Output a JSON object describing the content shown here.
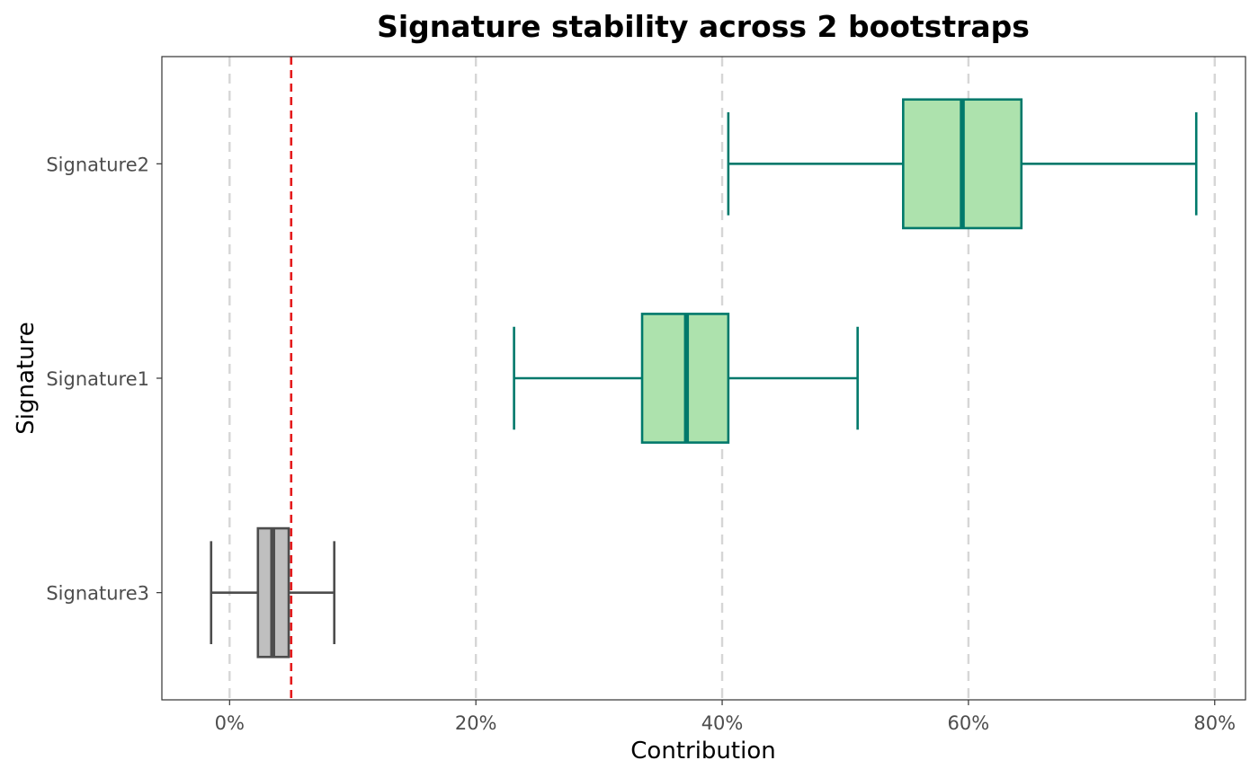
{
  "chart_data": {
    "type": "boxplot",
    "title": "Signature stability across 2 bootstraps",
    "xlabel": "Contribution",
    "ylabel": "Signature",
    "xlim": [
      -5.5,
      82.5
    ],
    "x_ticks": [
      0,
      20,
      40,
      60,
      80
    ],
    "x_tick_labels": [
      "0%",
      "20%",
      "40%",
      "60%",
      "80%"
    ],
    "categories": [
      "Signature2",
      "Signature1",
      "Signature3"
    ],
    "threshold": 5,
    "threshold_color": "#e41a1c",
    "grid": "vertical-dashed",
    "boxes": [
      {
        "name": "Signature2",
        "min": 40.5,
        "q1": 54.7,
        "median": 59.5,
        "q3": 64.3,
        "max": 78.5,
        "fill": "#ade2ad",
        "stroke": "#00796b"
      },
      {
        "name": "Signature1",
        "min": 23.1,
        "q1": 33.5,
        "median": 37.1,
        "q3": 40.5,
        "max": 51.0,
        "fill": "#ade2ad",
        "stroke": "#00796b"
      },
      {
        "name": "Signature3",
        "min": -1.5,
        "q1": 2.3,
        "median": 3.5,
        "q3": 4.8,
        "max": 8.5,
        "fill": "#bfbfbf",
        "stroke": "#4d4d4d"
      }
    ]
  }
}
